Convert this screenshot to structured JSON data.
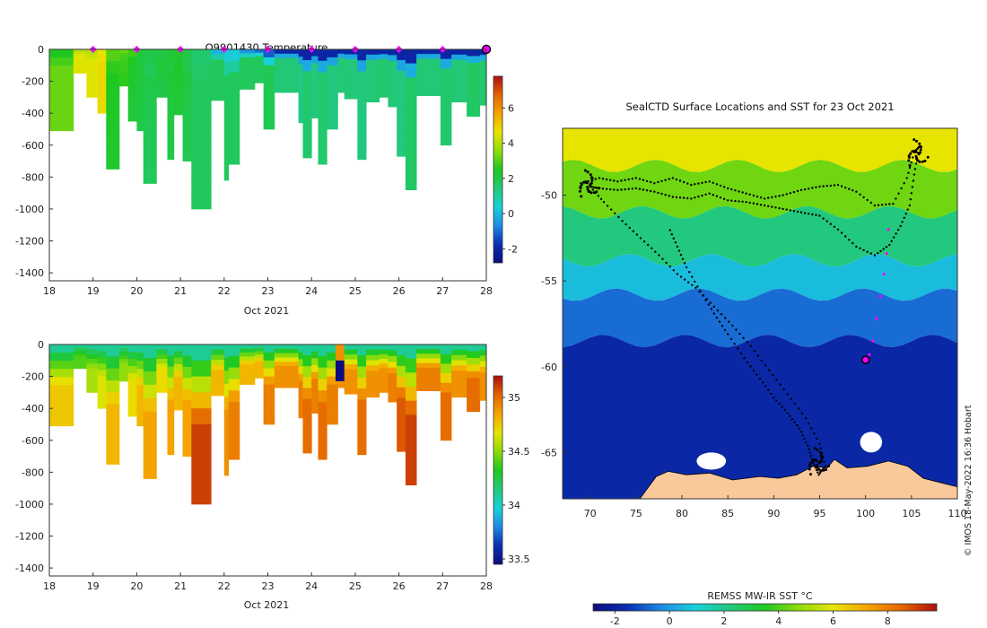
{
  "colors": {
    "land": "#f9c89b",
    "track": "#000000",
    "recent": "#ff00ff",
    "frame": "#333333",
    "palette": [
      "#0c0c7f",
      "#0a2fb0",
      "#1f8ae6",
      "#18d2d8",
      "#22c87a",
      "#1fc81f",
      "#8fdc0c",
      "#e8e400",
      "#f4a300",
      "#e46400",
      "#ad0f0f"
    ]
  },
  "chart_data": [
    {
      "id": "temperature-section",
      "type": "heatmap",
      "title": "Q9901430  Temperature",
      "xlabel": "Oct 2021",
      "ylabel": "",
      "xlim": [
        18,
        28
      ],
      "ylim": [
        -1450,
        0
      ],
      "xticks": [
        "18",
        "19",
        "20",
        "21",
        "22",
        "23",
        "24",
        "25",
        "26",
        "27",
        "28"
      ],
      "yticks": [
        "0",
        "-200",
        "-400",
        "-600",
        "-800",
        "-1000",
        "-1200",
        "-1400"
      ],
      "colorbar": {
        "range": [
          -2.8,
          7.8
        ],
        "ticks": [
          "-2",
          "0",
          "2",
          "4",
          "6"
        ]
      },
      "surface_markers": [
        19,
        20,
        21,
        22,
        23,
        24,
        25,
        26,
        27
      ],
      "latest_marker": 28,
      "profiles": [
        {
          "x": 18.0,
          "w": 0.55,
          "depth": 510,
          "surface": 2.5,
          "deep": 3.2
        },
        {
          "x": 18.55,
          "w": 0.3,
          "depth": 150,
          "surface": 4.0,
          "deep": 4.5
        },
        {
          "x": 18.85,
          "w": 0.25,
          "depth": 300,
          "surface": 4.0,
          "deep": 4.5
        },
        {
          "x": 19.1,
          "w": 0.2,
          "depth": 400,
          "surface": 4.6,
          "deep": 4.8
        },
        {
          "x": 19.3,
          "w": 0.3,
          "depth": 750,
          "surface": 3.0,
          "deep": 2.3
        },
        {
          "x": 19.6,
          "w": 0.2,
          "depth": 230,
          "surface": 3.2,
          "deep": 2.6
        },
        {
          "x": 19.8,
          "w": 0.2,
          "depth": 450,
          "surface": 2.8,
          "deep": 2.2
        },
        {
          "x": 20.0,
          "w": 0.15,
          "depth": 510,
          "surface": 2.2,
          "deep": 2.0
        },
        {
          "x": 20.15,
          "w": 0.3,
          "depth": 840,
          "surface": 2.0,
          "deep": 1.8
        },
        {
          "x": 20.45,
          "w": 0.25,
          "depth": 300,
          "surface": 2.1,
          "deep": 2.0
        },
        {
          "x": 20.7,
          "w": 0.15,
          "depth": 690,
          "surface": 2.2,
          "deep": 2.0
        },
        {
          "x": 20.85,
          "w": 0.2,
          "depth": 410,
          "surface": 2.4,
          "deep": 2.2
        },
        {
          "x": 21.05,
          "w": 0.2,
          "depth": 700,
          "surface": 2.0,
          "deep": 1.9
        },
        {
          "x": 21.25,
          "w": 0.45,
          "depth": 1000,
          "surface": 1.6,
          "deep": 1.8
        },
        {
          "x": 21.7,
          "w": 0.3,
          "depth": 320,
          "surface": 0.0,
          "deep": 1.8
        },
        {
          "x": 22.0,
          "w": 0.1,
          "depth": 820,
          "surface": 0.3,
          "deep": 1.8
        },
        {
          "x": 22.1,
          "w": 0.25,
          "depth": 720,
          "surface": 0.3,
          "deep": 1.8
        },
        {
          "x": 22.35,
          "w": 0.35,
          "depth": 250,
          "surface": -0.5,
          "deep": 1.8
        },
        {
          "x": 22.7,
          "w": 0.2,
          "depth": 210,
          "surface": -1.0,
          "deep": 1.8
        },
        {
          "x": 22.9,
          "w": 0.25,
          "depth": 500,
          "surface": -1.2,
          "deep": 1.9
        },
        {
          "x": 23.15,
          "w": 0.55,
          "depth": 270,
          "surface": -2.0,
          "deep": 1.5
        },
        {
          "x": 23.7,
          "w": 0.1,
          "depth": 460,
          "surface": -2.0,
          "deep": 1.3
        },
        {
          "x": 23.8,
          "w": 0.2,
          "depth": 680,
          "surface": -2.0,
          "deep": 1.6
        },
        {
          "x": 24.0,
          "w": 0.15,
          "depth": 430,
          "surface": -2.0,
          "deep": 1.4
        },
        {
          "x": 24.15,
          "w": 0.2,
          "depth": 720,
          "surface": -2.0,
          "deep": 1.6
        },
        {
          "x": 24.35,
          "w": 0.25,
          "depth": 500,
          "surface": -2.0,
          "deep": 1.4
        },
        {
          "x": 24.6,
          "w": 0.15,
          "depth": 270,
          "surface": -2.0,
          "deep": 1.5
        },
        {
          "x": 24.75,
          "w": 0.3,
          "depth": 310,
          "surface": -2.0,
          "deep": 1.5
        },
        {
          "x": 25.05,
          "w": 0.2,
          "depth": 690,
          "surface": -2.0,
          "deep": 1.4
        },
        {
          "x": 25.25,
          "w": 0.3,
          "depth": 330,
          "surface": -2.0,
          "deep": 1.5
        },
        {
          "x": 25.55,
          "w": 0.2,
          "depth": 300,
          "surface": -2.0,
          "deep": 1.6
        },
        {
          "x": 25.75,
          "w": 0.2,
          "depth": 360,
          "surface": -2.0,
          "deep": 1.5
        },
        {
          "x": 25.95,
          "w": 0.2,
          "depth": 670,
          "surface": -2.0,
          "deep": 1.4
        },
        {
          "x": 26.15,
          "w": 0.25,
          "depth": 880,
          "surface": -2.0,
          "deep": 1.7
        },
        {
          "x": 26.4,
          "w": 0.55,
          "depth": 290,
          "surface": -2.0,
          "deep": 1.5
        },
        {
          "x": 26.95,
          "w": 0.25,
          "depth": 600,
          "surface": -2.0,
          "deep": 1.6
        },
        {
          "x": 27.2,
          "w": 0.35,
          "depth": 330,
          "surface": -2.0,
          "deep": 1.5
        },
        {
          "x": 27.55,
          "w": 0.3,
          "depth": 420,
          "surface": -2.0,
          "deep": 1.7
        },
        {
          "x": 27.85,
          "w": 0.15,
          "depth": 350,
          "surface": -2.0,
          "deep": 1.6
        }
      ]
    },
    {
      "id": "salinity-section",
      "type": "heatmap",
      "title": "",
      "xlabel": "Oct 2021",
      "ylabel": "",
      "xlim": [
        18,
        28
      ],
      "ylim": [
        -1450,
        0
      ],
      "xticks": [
        "18",
        "19",
        "20",
        "21",
        "22",
        "23",
        "24",
        "25",
        "26",
        "27",
        "28"
      ],
      "yticks": [
        "0",
        "-200",
        "-400",
        "-600",
        "-800",
        "-1000",
        "-1200",
        "-1400"
      ],
      "colorbar": {
        "range": [
          33.45,
          35.2
        ],
        "ticks": [
          "33.5",
          "34",
          "34.5",
          "35"
        ]
      },
      "profiles": [
        {
          "x": 18.0,
          "w": 0.55,
          "depth": 510,
          "surface": 34.1,
          "deep": 34.75
        },
        {
          "x": 18.55,
          "w": 0.3,
          "depth": 150,
          "surface": 34.1,
          "deep": 34.4
        },
        {
          "x": 18.85,
          "w": 0.25,
          "depth": 300,
          "surface": 34.1,
          "deep": 34.55
        },
        {
          "x": 19.1,
          "w": 0.2,
          "depth": 400,
          "surface": 34.1,
          "deep": 34.65
        },
        {
          "x": 19.3,
          "w": 0.3,
          "depth": 750,
          "surface": 34.1,
          "deep": 34.8
        },
        {
          "x": 19.6,
          "w": 0.2,
          "depth": 230,
          "surface": 34.1,
          "deep": 34.5
        },
        {
          "x": 19.8,
          "w": 0.2,
          "depth": 450,
          "surface": 34.1,
          "deep": 34.7
        },
        {
          "x": 20.0,
          "w": 0.15,
          "depth": 510,
          "surface": 34.1,
          "deep": 34.8
        },
        {
          "x": 20.15,
          "w": 0.3,
          "depth": 840,
          "surface": 34.1,
          "deep": 34.85
        },
        {
          "x": 20.45,
          "w": 0.25,
          "depth": 300,
          "surface": 34.1,
          "deep": 34.7
        },
        {
          "x": 20.7,
          "w": 0.15,
          "depth": 690,
          "surface": 34.1,
          "deep": 34.85
        },
        {
          "x": 20.85,
          "w": 0.2,
          "depth": 410,
          "surface": 34.1,
          "deep": 34.8
        },
        {
          "x": 21.05,
          "w": 0.2,
          "depth": 700,
          "surface": 34.1,
          "deep": 34.85
        },
        {
          "x": 21.25,
          "w": 0.45,
          "depth": 1000,
          "surface": 34.1,
          "deep": 35.1
        },
        {
          "x": 21.7,
          "w": 0.3,
          "depth": 320,
          "surface": 34.1,
          "deep": 34.8
        },
        {
          "x": 22.0,
          "w": 0.1,
          "depth": 820,
          "surface": 34.1,
          "deep": 34.9
        },
        {
          "x": 22.1,
          "w": 0.25,
          "depth": 720,
          "surface": 34.1,
          "deep": 34.95
        },
        {
          "x": 22.35,
          "w": 0.35,
          "depth": 250,
          "surface": 34.1,
          "deep": 34.8
        },
        {
          "x": 22.7,
          "w": 0.2,
          "depth": 210,
          "surface": 34.1,
          "deep": 34.8
        },
        {
          "x": 22.9,
          "w": 0.25,
          "depth": 500,
          "surface": 34.1,
          "deep": 34.95
        },
        {
          "x": 23.15,
          "w": 0.55,
          "depth": 270,
          "surface": 34.1,
          "deep": 34.9
        },
        {
          "x": 23.7,
          "w": 0.1,
          "depth": 460,
          "surface": 34.1,
          "deep": 34.95
        },
        {
          "x": 23.8,
          "w": 0.2,
          "depth": 680,
          "surface": 34.1,
          "deep": 35.0
        },
        {
          "x": 24.0,
          "w": 0.15,
          "depth": 430,
          "surface": 34.1,
          "deep": 34.95
        },
        {
          "x": 24.15,
          "w": 0.2,
          "depth": 720,
          "surface": 34.1,
          "deep": 35.0
        },
        {
          "x": 24.35,
          "w": 0.25,
          "depth": 500,
          "surface": 34.1,
          "deep": 34.95
        },
        {
          "x": 24.6,
          "w": 0.15,
          "depth": 270,
          "surface": 34.1,
          "deep": 34.9
        },
        {
          "x": 24.75,
          "w": 0.3,
          "depth": 310,
          "surface": 34.1,
          "deep": 34.9
        },
        {
          "x": 25.05,
          "w": 0.2,
          "depth": 690,
          "surface": 34.1,
          "deep": 35.0
        },
        {
          "x": 25.25,
          "w": 0.3,
          "depth": 330,
          "surface": 34.1,
          "deep": 34.9
        },
        {
          "x": 25.55,
          "w": 0.2,
          "depth": 300,
          "surface": 34.1,
          "deep": 34.9
        },
        {
          "x": 25.75,
          "w": 0.2,
          "depth": 360,
          "surface": 34.1,
          "deep": 34.95
        },
        {
          "x": 25.95,
          "w": 0.2,
          "depth": 670,
          "surface": 34.1,
          "deep": 35.05
        },
        {
          "x": 26.15,
          "w": 0.25,
          "depth": 880,
          "surface": 34.1,
          "deep": 35.1
        },
        {
          "x": 26.4,
          "w": 0.55,
          "depth": 290,
          "surface": 34.1,
          "deep": 34.95
        },
        {
          "x": 26.95,
          "w": 0.25,
          "depth": 600,
          "surface": 34.1,
          "deep": 35.0
        },
        {
          "x": 27.2,
          "w": 0.35,
          "depth": 330,
          "surface": 34.1,
          "deep": 34.9
        },
        {
          "x": 27.55,
          "w": 0.3,
          "depth": 420,
          "surface": 34.1,
          "deep": 35.0
        },
        {
          "x": 27.85,
          "w": 0.15,
          "depth": 350,
          "surface": 34.1,
          "deep": 34.9
        }
      ],
      "anomaly": {
        "x": 24.55,
        "w": 0.2,
        "bands": [
          {
            "from": 0,
            "to": 100,
            "value": 34.9
          },
          {
            "from": 100,
            "to": 230,
            "value": 33.45
          }
        ]
      }
    },
    {
      "id": "sst-map",
      "type": "heatmap",
      "title": "SealCTD Surface Locations and SST for 23 Oct 2021",
      "xlabel": "",
      "ylabel": "",
      "xlim": [
        67,
        110
      ],
      "ylim": [
        -67.7,
        -46.1
      ],
      "xticks": [
        "70",
        "75",
        "80",
        "85",
        "90",
        "95",
        "100",
        "105",
        "110"
      ],
      "yticks": [
        "-50",
        "-55",
        "-60",
        "-65"
      ],
      "sst_range": [
        -2.8,
        9.8
      ],
      "zones": [
        {
          "lat_max": -46.1,
          "lat_min": -48.3,
          "sst": 6.0
        },
        {
          "lat_max": -48.3,
          "lat_min": -51.0,
          "sst": 4.4
        },
        {
          "lat_max": -51.0,
          "lat_min": -53.8,
          "sst": 2.2
        },
        {
          "lat_max": -53.8,
          "lat_min": -55.8,
          "sst": 0.6
        },
        {
          "lat_max": -55.8,
          "lat_min": -58.5,
          "sst": -0.7
        },
        {
          "lat_max": -58.5,
          "lat_min": -67.7,
          "sst": -1.8
        }
      ],
      "track": [
        [
          69,
          -49.3
        ],
        [
          71,
          -49.0
        ],
        [
          73,
          -49.2
        ],
        [
          75,
          -49.0
        ],
        [
          77,
          -49.3
        ],
        [
          79,
          -49.0
        ],
        [
          81,
          -49.4
        ],
        [
          83,
          -49.2
        ],
        [
          85,
          -49.6
        ],
        [
          87,
          -49.9
        ],
        [
          89,
          -50.2
        ],
        [
          91,
          -50.0
        ],
        [
          93,
          -49.7
        ],
        [
          95,
          -49.5
        ],
        [
          97,
          -49.4
        ],
        [
          99,
          -49.8
        ],
        [
          101,
          -50.6
        ],
        [
          103,
          -50.5
        ],
        [
          104.5,
          -49.0
        ],
        [
          105.3,
          -47.5
        ],
        [
          105.8,
          -47.2
        ],
        [
          105.3,
          -48.8
        ],
        [
          104.8,
          -50.6
        ],
        [
          103.8,
          -51.8
        ],
        [
          102.6,
          -52.9
        ],
        [
          101,
          -53.5
        ],
        [
          99,
          -53.0
        ],
        [
          97,
          -52.0
        ],
        [
          95,
          -51.2
        ],
        [
          93,
          -51.0
        ],
        [
          91,
          -50.8
        ],
        [
          89,
          -50.6
        ],
        [
          87,
          -50.4
        ],
        [
          85,
          -50.3
        ],
        [
          83,
          -49.9
        ],
        [
          81,
          -50.2
        ],
        [
          79,
          -50.1
        ],
        [
          77,
          -49.8
        ],
        [
          75,
          -49.6
        ],
        [
          73,
          -49.7
        ],
        [
          71,
          -49.6
        ],
        [
          70,
          -49.5
        ],
        [
          71.5,
          -50.4
        ],
        [
          73.5,
          -51.5
        ],
        [
          75.5,
          -52.5
        ],
        [
          77.5,
          -53.5
        ],
        [
          79.5,
          -54.6
        ],
        [
          81.5,
          -55.4
        ],
        [
          83.5,
          -56.5
        ],
        [
          85.5,
          -57.6
        ],
        [
          87.5,
          -58.8
        ],
        [
          89.5,
          -60.2
        ],
        [
          91.5,
          -61.6
        ],
        [
          93.5,
          -63.0
        ],
        [
          95,
          -64.5
        ],
        [
          95.6,
          -65.8
        ],
        [
          94.9,
          -66.3
        ],
        [
          94.3,
          -65.6
        ],
        [
          93.7,
          -64.6
        ],
        [
          92.8,
          -63.6
        ],
        [
          91.5,
          -62.7
        ],
        [
          90,
          -61.8
        ],
        [
          88.5,
          -60.7
        ],
        [
          86.8,
          -59.5
        ],
        [
          85,
          -58.1
        ],
        [
          83.5,
          -56.9
        ],
        [
          82,
          -55.6
        ],
        [
          80.5,
          -54.2
        ],
        [
          79.5,
          -53.0
        ],
        [
          78.5,
          -51.8
        ]
      ],
      "recent_track": [
        [
          102.5,
          -52.0
        ],
        [
          102.3,
          -53.4
        ],
        [
          102.0,
          -54.6
        ],
        [
          101.6,
          -55.9
        ],
        [
          101.2,
          -57.2
        ],
        [
          100.8,
          -58.5
        ],
        [
          100.4,
          -59.3
        ]
      ],
      "latest_position": [
        100.0,
        -59.6
      ],
      "land": [
        [
          75,
          -68
        ],
        [
          77.2,
          -66.4
        ],
        [
          78.5,
          -66.1
        ],
        [
          80.5,
          -66.3
        ],
        [
          83,
          -66.2
        ],
        [
          85.5,
          -66.6
        ],
        [
          88.5,
          -66.4
        ],
        [
          90.5,
          -66.5
        ],
        [
          92.5,
          -66.3
        ],
        [
          94.3,
          -65.8
        ],
        [
          95.8,
          -65.9
        ],
        [
          96.6,
          -65.4
        ],
        [
          98,
          -65.9
        ],
        [
          100.2,
          -65.8
        ],
        [
          102.5,
          -65.5
        ],
        [
          104.6,
          -65.8
        ],
        [
          106.3,
          -66.5
        ],
        [
          108.5,
          -66.8
        ],
        [
          110,
          -67.0
        ],
        [
          110,
          -68
        ],
        [
          75,
          -68
        ]
      ],
      "ice_blobs": [
        [
          83.2,
          -65.5,
          1.6,
          0.5
        ],
        [
          100.6,
          -64.4,
          1.2,
          0.6
        ]
      ],
      "colorbar": {
        "label": "REMSS MW-IR SST °C",
        "range": [
          -2.8,
          9.8
        ],
        "ticks": [
          "-2",
          "0",
          "2",
          "4",
          "6",
          "8"
        ]
      }
    }
  ],
  "credit": "© IMOS 18-May-2022 16:36 Hobart"
}
